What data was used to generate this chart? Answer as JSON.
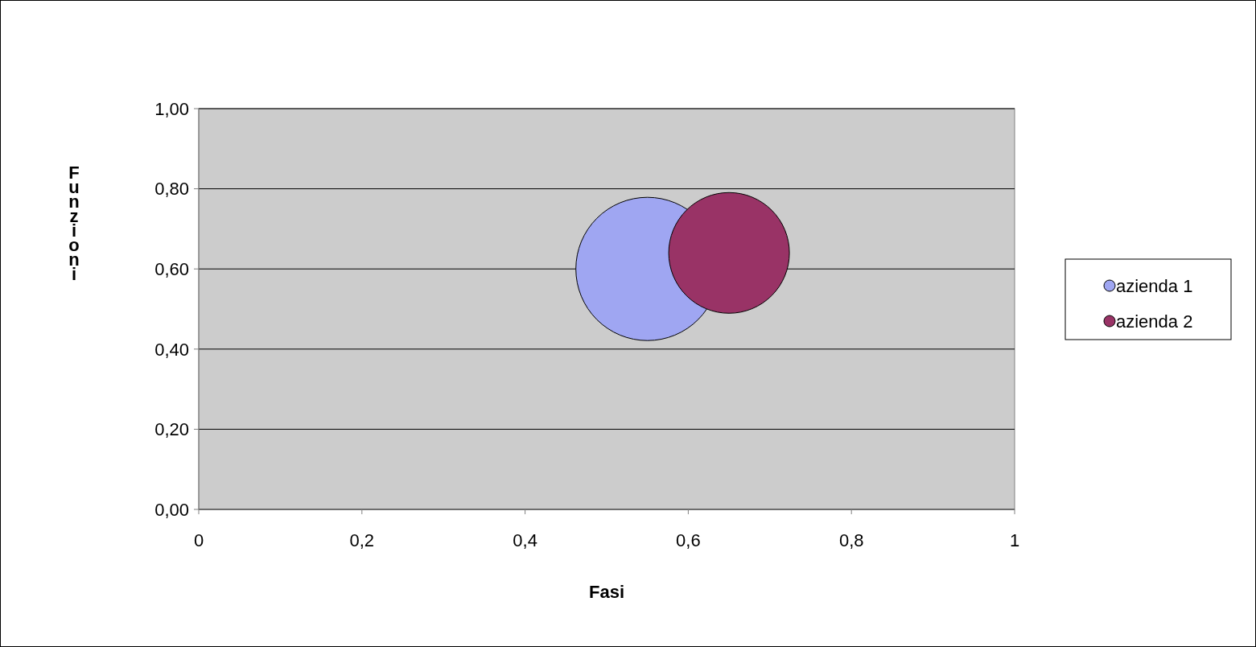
{
  "chart_data": {
    "type": "bubble",
    "xlabel": "Fasi",
    "ylabel": "Funzioni",
    "xlim": [
      0,
      1
    ],
    "xticks": [
      0,
      {
        "value": 0.2,
        "label": "0,2"
      },
      {
        "value": 0.4,
        "label": "0,4"
      },
      {
        "value": 0.6,
        "label": "0,6"
      },
      {
        "value": 0.8,
        "label": "0,8"
      },
      1
    ],
    "ylim": [
      0,
      1
    ],
    "yticks": [
      {
        "value": 0,
        "label": "0,00"
      },
      {
        "value": 0.2,
        "label": "0,20"
      },
      {
        "value": 0.4,
        "label": "0,40"
      },
      {
        "value": 0.6,
        "label": "0,60"
      },
      {
        "value": 0.8,
        "label": "0,80"
      },
      {
        "value": 1,
        "label": "1,00"
      }
    ],
    "grid": "y",
    "legend": "right",
    "series": [
      {
        "name": "azienda 1",
        "color": "#9fa6f2",
        "x": [
          0.55
        ],
        "values": [
          0.6
        ],
        "sizes": [
          1
        ]
      },
      {
        "name": "azienda 2",
        "color": "#993366",
        "x": [
          0.65
        ],
        "values": [
          0.64
        ],
        "sizes": [
          0.71
        ]
      }
    ]
  }
}
